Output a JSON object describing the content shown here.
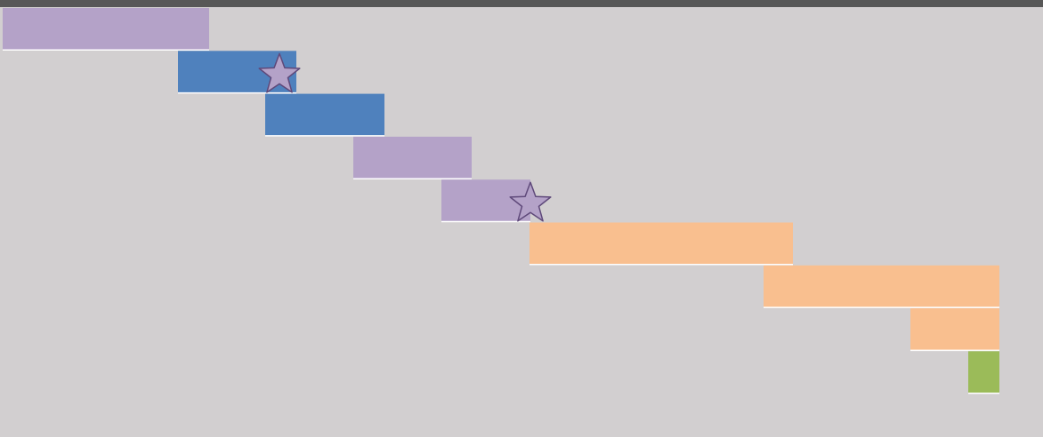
{
  "colors": {
    "background": "#d2cfd0",
    "top_bar": "#575757",
    "purple": "#b4a2c8",
    "blue": "#4f81bd",
    "orange": "#f9bf8f",
    "green": "#9bbb59",
    "star_fill": "#b4a2c8",
    "star_stroke": "#5f497a",
    "row_line": "#ffffff"
  },
  "chart_data": {
    "type": "gantt",
    "title": "",
    "xlabel": "",
    "ylabel": "",
    "grid": false,
    "legend": "none",
    "xlim": [
      0,
      1172
    ],
    "tasks": [
      {
        "start": 3,
        "end": 235,
        "color": "purple"
      },
      {
        "start": 200,
        "end": 333,
        "color": "blue"
      },
      {
        "start": 298,
        "end": 432,
        "color": "blue"
      },
      {
        "start": 397,
        "end": 530,
        "color": "purple"
      },
      {
        "start": 496,
        "end": 596,
        "color": "purple"
      },
      {
        "start": 595,
        "end": 891,
        "color": "orange"
      },
      {
        "start": 858,
        "end": 1123,
        "color": "orange"
      },
      {
        "start": 1023,
        "end": 1123,
        "color": "orange"
      },
      {
        "start": 1088,
        "end": 1123,
        "color": "green"
      }
    ],
    "milestones": [
      {
        "x": 314,
        "row": 1.5,
        "shape": "star"
      },
      {
        "x": 596,
        "row": 4.5,
        "shape": "star"
      }
    ]
  }
}
